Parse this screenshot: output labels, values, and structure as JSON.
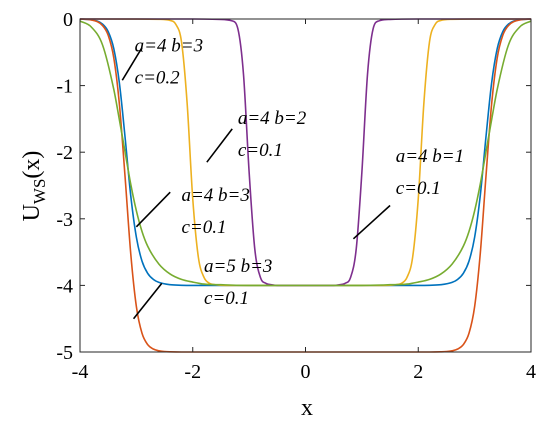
{
  "chart_data": {
    "type": "line",
    "xlabel": "x",
    "ylabel_main": "U",
    "ylabel_sub": "WS",
    "ylabel_arg": "(x)",
    "xlim": [
      -4,
      4
    ],
    "ylim": [
      -5,
      0
    ],
    "xticks": [
      -4,
      -2,
      0,
      2,
      4
    ],
    "yticks": [
      0,
      -1,
      -2,
      -3,
      -4,
      -5
    ],
    "grid": false,
    "legend": "none",
    "series": [
      {
        "params": {
          "a": 5,
          "b": 3,
          "c": 0.1
        },
        "color": "#0072bd",
        "x": [
          -4.0,
          -3.8,
          -3.6,
          -3.5,
          -3.4,
          -3.3,
          -3.2,
          -3.1,
          -3.0,
          -2.9,
          -2.8,
          -2.7,
          -2.6,
          -2.4,
          -2.2,
          -2.0,
          -1.6,
          -1.0,
          0.0,
          1.0,
          1.6,
          2.0,
          2.2,
          2.4,
          2.6,
          2.7,
          2.8,
          2.9,
          3.0,
          3.1,
          3.2,
          3.3,
          3.4,
          3.5,
          3.6,
          3.8,
          4.0
        ],
        "y": [
          -0.001,
          -0.011,
          -0.077,
          -0.189,
          -0.448,
          -0.97,
          -1.78,
          -2.652,
          -3.277,
          -3.635,
          -3.818,
          -3.909,
          -3.955,
          -3.99,
          -3.998,
          -4.0,
          -4.0,
          -4.0,
          -4.0,
          -4.0,
          -4.0,
          -4.0,
          -3.998,
          -3.99,
          -3.955,
          -3.909,
          -3.818,
          -3.635,
          -3.277,
          -2.652,
          -1.78,
          -0.97,
          -0.448,
          -0.189,
          -0.077,
          -0.011,
          -0.001
        ]
      },
      {
        "params": {
          "a": 5,
          "b": 3,
          "c": 0.1
        },
        "color": "#d95319",
        "x": [
          -4.0,
          -3.8,
          -3.6,
          -3.5,
          -3.4,
          -3.3,
          -3.2,
          -3.1,
          -3.0,
          -2.9,
          -2.8,
          -2.7,
          -2.6,
          -2.5,
          -2.4,
          -2.2,
          -2.0,
          -1.0,
          0.0,
          1.0,
          2.0,
          2.2,
          2.4,
          2.5,
          2.6,
          2.7,
          2.8,
          2.9,
          3.0,
          3.1,
          3.2,
          3.3,
          3.4,
          3.5,
          3.6,
          3.8,
          4.0
        ],
        "y": [
          -0.001,
          -0.014,
          -0.098,
          -0.244,
          -0.587,
          -1.29,
          -2.376,
          -3.523,
          -4.319,
          -4.719,
          -4.888,
          -4.955,
          -4.982,
          -4.993,
          -4.997,
          -5.0,
          -5.0,
          -5.0,
          -5.0,
          -5.0,
          -5.0,
          -5.0,
          -4.997,
          -4.993,
          -4.982,
          -4.955,
          -4.888,
          -4.719,
          -4.319,
          -3.523,
          -2.376,
          -1.29,
          -0.587,
          -0.244,
          -0.098,
          -0.014,
          -0.001
        ]
      },
      {
        "params": {
          "a": 4,
          "b": 3,
          "c": 0.2
        },
        "color": "#edb120",
        "x": [
          -4.0,
          -3.0,
          -2.6,
          -2.4,
          -2.3,
          -2.2,
          -2.1,
          -2.0,
          -1.9,
          -1.8,
          -1.7,
          -1.6,
          -1.4,
          -1.2,
          -1.0,
          0.0,
          1.0,
          1.2,
          1.4,
          1.6,
          1.7,
          1.8,
          1.9,
          2.0,
          2.1,
          2.2,
          2.3,
          2.4,
          2.6,
          3.0,
          4.0
        ],
        "y": [
          0.0,
          -0.001,
          -0.005,
          -0.022,
          -0.081,
          -0.34,
          -1.26,
          -2.7,
          -3.58,
          -3.88,
          -3.97,
          -3.99,
          -4.0,
          -4.0,
          -4.0,
          -4.0,
          -4.0,
          -4.0,
          -4.0,
          -3.99,
          -3.97,
          -3.88,
          -3.58,
          -2.7,
          -1.26,
          -0.34,
          -0.081,
          -0.022,
          -0.005,
          -0.001,
          0.0
        ]
      },
      {
        "params": {
          "a": 4,
          "b": 2,
          "c": 0.1
        },
        "color": "#7e2f8e",
        "x": [
          -4.0,
          -2.0,
          -1.5,
          -1.3,
          -1.2,
          -1.1,
          -1.0,
          -0.9,
          -0.8,
          -0.7,
          -0.6,
          -0.5,
          -0.3,
          0.0,
          0.3,
          0.5,
          0.6,
          0.7,
          0.8,
          0.9,
          1.0,
          1.1,
          1.2,
          1.3,
          1.5,
          2.0,
          4.0
        ],
        "y": [
          0.0,
          0.0,
          -0.006,
          -0.029,
          -0.146,
          -0.83,
          -2.3,
          -3.45,
          -3.88,
          -3.97,
          -3.99,
          -4.0,
          -4.0,
          -4.0,
          -4.0,
          -4.0,
          -3.99,
          -3.97,
          -3.88,
          -3.45,
          -2.3,
          -0.83,
          -0.146,
          -0.029,
          -0.006,
          0.0,
          0.0
        ]
      },
      {
        "params": {
          "a": 4,
          "b": 3,
          "c": 0.1
        },
        "color": "#77ac30",
        "x": [
          -4.0,
          -3.8,
          -3.6,
          -3.4,
          -3.3,
          -3.2,
          -3.1,
          -3.0,
          -2.9,
          -2.8,
          -2.6,
          -2.4,
          -2.2,
          -2.0,
          -1.8,
          -1.5,
          -1.0,
          0.0,
          1.0,
          1.5,
          1.8,
          2.0,
          2.2,
          2.4,
          2.6,
          2.8,
          2.9,
          3.0,
          3.1,
          3.2,
          3.3,
          3.4,
          3.6,
          3.8,
          4.0
        ],
        "y": [
          -0.03,
          -0.12,
          -0.39,
          -1.06,
          -1.52,
          -2.0,
          -2.48,
          -2.88,
          -3.19,
          -3.41,
          -3.68,
          -3.83,
          -3.91,
          -3.95,
          -3.98,
          -3.99,
          -4.0,
          -4.0,
          -4.0,
          -3.99,
          -3.98,
          -3.95,
          -3.91,
          -3.83,
          -3.68,
          -3.41,
          -3.19,
          -2.88,
          -2.48,
          -2.0,
          -1.52,
          -1.06,
          -0.39,
          -0.12,
          -0.03
        ]
      }
    ],
    "annotations": [
      {
        "lines": [
          "a=4 b=3",
          "c=0.2"
        ],
        "text_pos": [
          -3.03,
          -0.49
        ],
        "line_from": [
          -2.9,
          -0.43
        ],
        "line_to": [
          -3.25,
          -0.92
        ]
      },
      {
        "lines": [
          "a=4 b=2",
          "c=0.1"
        ],
        "text_pos": [
          -1.2,
          -1.58
        ],
        "line_from": [
          -1.3,
          -1.65
        ],
        "line_to": [
          -1.75,
          -2.15
        ]
      },
      {
        "lines": [
          "a=4 b=3",
          "c=0.1"
        ],
        "text_pos": [
          -2.2,
          -2.73
        ],
        "line_from": [
          -2.4,
          -2.6
        ],
        "line_to": [
          -3.0,
          -3.12
        ]
      },
      {
        "lines": [
          "a=5 b=3",
          "c=0.1"
        ],
        "text_pos": [
          -1.8,
          -3.8
        ],
        "line_from": [
          -2.55,
          -3.97
        ],
        "line_to": [
          -3.05,
          -4.5
        ]
      },
      {
        "lines": [
          "a=4 b=1",
          "c=0.1"
        ],
        "text_pos": [
          1.6,
          -2.15
        ],
        "line_from": [
          1.5,
          -2.8
        ],
        "line_to": [
          0.85,
          -3.3
        ]
      }
    ]
  }
}
